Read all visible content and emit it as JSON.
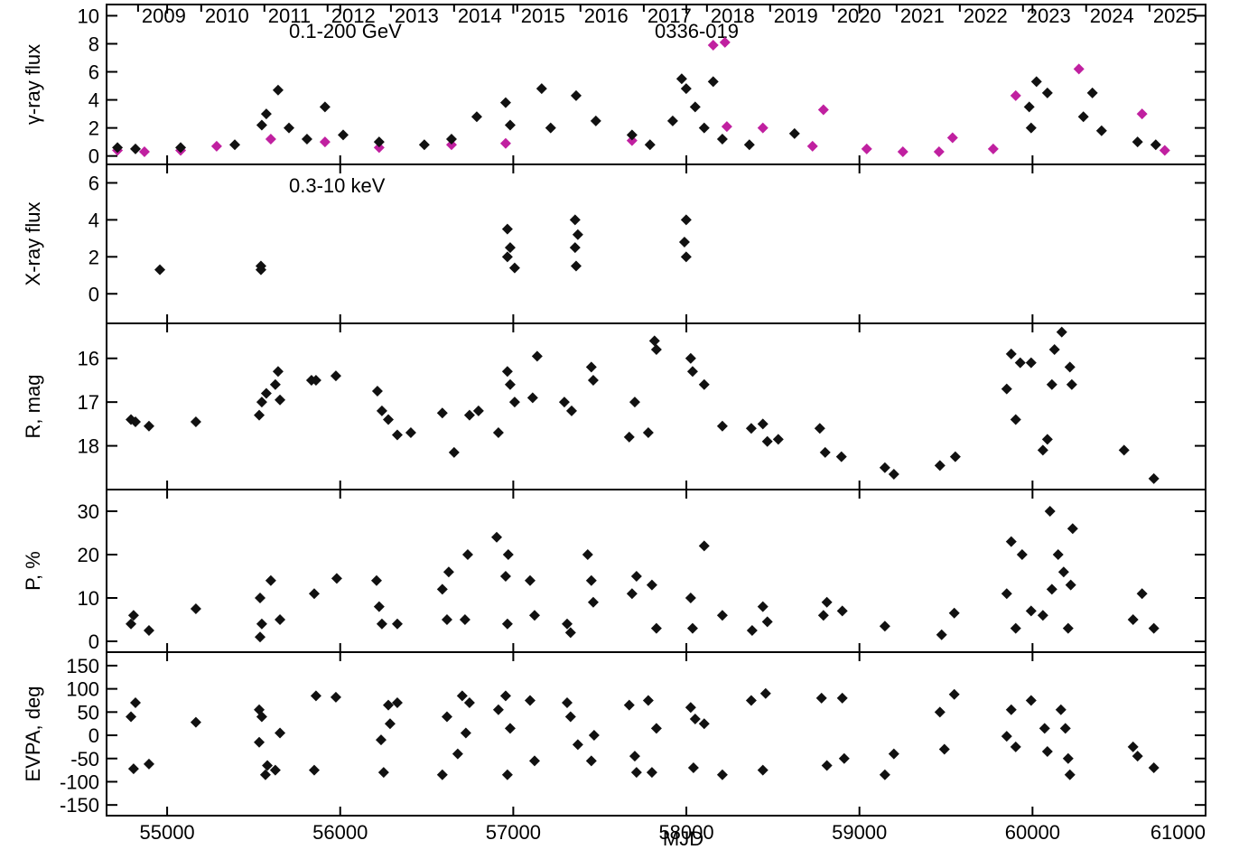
{
  "chart_data": [
    {
      "type": "scatter",
      "y_label": "γ-ray flux",
      "annotations": [
        "0.1-200 GeV",
        "0336-019"
      ],
      "xlim": [
        54650,
        61000
      ],
      "xticks": [
        55000,
        56000,
        57000,
        58000,
        59000,
        60000,
        61000
      ],
      "x2ticks": [
        {
          "value": 54832,
          "label": "2009"
        },
        {
          "value": 55197,
          "label": "2010"
        },
        {
          "value": 55562,
          "label": "2011"
        },
        {
          "value": 55927,
          "label": "2012"
        },
        {
          "value": 56293,
          "label": "2013"
        },
        {
          "value": 56658,
          "label": "2014"
        },
        {
          "value": 57023,
          "label": "2015"
        },
        {
          "value": 57388,
          "label": "2016"
        },
        {
          "value": 57754,
          "label": "2017"
        },
        {
          "value": 58119,
          "label": "2018"
        },
        {
          "value": 58484,
          "label": "2019"
        },
        {
          "value": 58849,
          "label": "2020"
        },
        {
          "value": 59215,
          "label": "2021"
        },
        {
          "value": 59580,
          "label": "2022"
        },
        {
          "value": 59945,
          "label": "2023"
        },
        {
          "value": 60310,
          "label": "2024"
        },
        {
          "value": 60676,
          "label": "2025"
        }
      ],
      "ylim": [
        -0.6,
        10.8
      ],
      "yticks": [
        0,
        2,
        4,
        6,
        8,
        10
      ],
      "series": [
        {
          "color": "#c020a0",
          "x": [
            54713,
            54869,
            55078,
            55286,
            55599,
            55912,
            56225,
            56643,
            56956,
            57686,
            58155,
            58223,
            58234,
            58442,
            58729,
            58792,
            59042,
            59251,
            59460,
            59538,
            59773,
            59903,
            60268,
            60633,
            60764
          ],
          "values": [
            0.4,
            0.3,
            0.4,
            0.7,
            1.2,
            1.0,
            0.6,
            0.8,
            0.9,
            1.1,
            7.9,
            8.1,
            2.1,
            2.0,
            0.7,
            3.3,
            0.5,
            0.3,
            0.3,
            1.3,
            0.5,
            4.3,
            6.2,
            3.0,
            0.4
          ]
        },
        {
          "color": "#111111",
          "x": [
            54713,
            54817,
            55078,
            55391,
            55547,
            55573,
            55641,
            55704,
            55808,
            55912,
            56017,
            56225,
            56486,
            56643,
            56789,
            56956,
            56982,
            57164,
            57216,
            57363,
            57477,
            57686,
            57790,
            57921,
            57973,
            57999,
            58051,
            58103,
            58155,
            58208,
            58364,
            58625,
            59981,
            59992,
            60023,
            60086,
            60294,
            60346,
            60399,
            60607,
            60712
          ],
          "values": [
            0.6,
            0.5,
            0.6,
            0.8,
            2.2,
            3.0,
            4.7,
            2.0,
            1.2,
            3.5,
            1.5,
            1.0,
            0.8,
            1.2,
            2.8,
            3.8,
            2.2,
            4.8,
            2.0,
            4.3,
            2.5,
            1.5,
            0.8,
            2.5,
            5.5,
            4.8,
            3.5,
            2.0,
            5.3,
            1.2,
            0.8,
            1.6,
            3.5,
            2.0,
            5.3,
            4.5,
            2.8,
            4.5,
            1.8,
            1.0,
            0.8
          ]
        }
      ]
    },
    {
      "type": "scatter",
      "y_label": "X-ray flux",
      "annotations": [
        "0.3-10 keV"
      ],
      "xlim": [
        54650,
        61000
      ],
      "xticks": [
        55000,
        56000,
        57000,
        58000,
        59000,
        60000,
        61000
      ],
      "ylim": [
        -1.6,
        7
      ],
      "yticks": [
        0,
        2,
        4,
        6
      ],
      "series": [
        {
          "color": "#111111",
          "x": [
            54958,
            55542,
            55542,
            56966,
            56966,
            56982,
            57008,
            57357,
            57357,
            57363,
            57373,
            57999,
            57989,
            57999
          ],
          "values": [
            1.3,
            1.5,
            1.3,
            2.0,
            3.5,
            2.5,
            1.4,
            4.0,
            2.5,
            1.5,
            3.2,
            4.0,
            2.8,
            2.0
          ]
        }
      ]
    },
    {
      "type": "scatter",
      "y_label": "R, mag",
      "xlim": [
        54650,
        61000
      ],
      "xticks": [
        55000,
        56000,
        57000,
        58000,
        59000,
        60000,
        61000
      ],
      "ylim": [
        19,
        15.2
      ],
      "yticks": [
        16,
        17,
        18
      ],
      "series": [
        {
          "color": "#111111",
          "x": [
            54791,
            54817,
            54895,
            55166,
            55532,
            55547,
            55573,
            55625,
            55652,
            55641,
            55834,
            55860,
            55975,
            56215,
            56241,
            56278,
            56330,
            56408,
            56590,
            56658,
            56747,
            56799,
            56914,
            56966,
            56982,
            57008,
            57112,
            57138,
            57295,
            57337,
            57451,
            57462,
            57670,
            57702,
            57780,
            57816,
            57827,
            58025,
            58036,
            58103,
            58208,
            58375,
            58442,
            58468,
            58531,
            58771,
            58802,
            58896,
            59147,
            59199,
            59465,
            59554,
            59851,
            59877,
            59903,
            59929,
            59992,
            60060,
            60086,
            60112,
            60127,
            60169,
            60216,
            60227,
            60529,
            60701
          ],
          "values": [
            17.4,
            17.45,
            17.55,
            17.45,
            17.3,
            17.0,
            16.8,
            16.6,
            16.95,
            16.3,
            16.5,
            16.5,
            16.4,
            16.75,
            17.2,
            17.4,
            17.75,
            17.7,
            17.25,
            18.15,
            17.3,
            17.2,
            17.7,
            16.3,
            16.6,
            17.0,
            16.9,
            15.95,
            17.0,
            17.2,
            16.2,
            16.5,
            17.8,
            17.0,
            17.7,
            15.6,
            15.8,
            16.0,
            16.3,
            16.6,
            17.55,
            17.6,
            17.5,
            17.9,
            17.85,
            17.6,
            18.15,
            18.25,
            18.5,
            18.65,
            18.45,
            18.25,
            16.7,
            15.9,
            17.4,
            16.1,
            16.1,
            18.1,
            17.85,
            16.6,
            15.8,
            15.4,
            16.2,
            16.6,
            18.1,
            18.75
          ]
        }
      ]
    },
    {
      "type": "scatter",
      "y_label": "P, %",
      "xlim": [
        54650,
        61000
      ],
      "xticks": [
        55000,
        56000,
        57000,
        58000,
        59000,
        60000,
        61000
      ],
      "ylim": [
        -2.5,
        35
      ],
      "yticks": [
        0,
        10,
        20,
        30
      ],
      "series": [
        {
          "color": "#111111",
          "x": [
            54791,
            54806,
            54895,
            55166,
            55537,
            55537,
            55547,
            55599,
            55652,
            55850,
            55980,
            56210,
            56225,
            56241,
            56330,
            56590,
            56617,
            56627,
            56721,
            56737,
            56904,
            56956,
            56971,
            56966,
            57097,
            57123,
            57311,
            57331,
            57430,
            57451,
            57462,
            57686,
            57712,
            57801,
            57827,
            58025,
            58036,
            58103,
            58208,
            58380,
            58442,
            58468,
            58792,
            58812,
            58901,
            59147,
            59475,
            59548,
            59851,
            59877,
            59903,
            59940,
            59992,
            60060,
            60101,
            60112,
            60148,
            60180,
            60206,
            60221,
            60232,
            60581,
            60633,
            60701
          ],
          "values": [
            4,
            6,
            2.5,
            7.5,
            10,
            1,
            4,
            14,
            5,
            11,
            14.5,
            14,
            8,
            4,
            4,
            12,
            5,
            16,
            5,
            20,
            24,
            15,
            20,
            4,
            14,
            6,
            4,
            2,
            20,
            14,
            9,
            11,
            15,
            13,
            3,
            10,
            3,
            22,
            6,
            2.5,
            8,
            4.5,
            6,
            9,
            7,
            3.5,
            1.5,
            6.5,
            11,
            23,
            3,
            20,
            7,
            6,
            30,
            12,
            20,
            16,
            3,
            13,
            26,
            5,
            11,
            3
          ]
        }
      ]
    },
    {
      "type": "scatter",
      "y_label": "EVPA, deg",
      "x_label": "MJD",
      "xlim": [
        54650,
        61000
      ],
      "xticks": [
        55000,
        56000,
        57000,
        58000,
        59000,
        60000,
        61000
      ],
      "ylim": [
        -173,
        179
      ],
      "yticks": [
        -150,
        -100,
        -50,
        0,
        50,
        100,
        150
      ],
      "series": [
        {
          "color": "#111111",
          "x": [
            54791,
            54817,
            54806,
            54895,
            55166,
            55532,
            55532,
            55547,
            55568,
            55579,
            55625,
            55652,
            55860,
            55975,
            55850,
            56236,
            56251,
            56278,
            56288,
            56330,
            56590,
            56617,
            56679,
            56705,
            56726,
            56747,
            56914,
            56956,
            56966,
            56982,
            57097,
            57123,
            57311,
            57331,
            57373,
            57451,
            57467,
            57670,
            57702,
            57712,
            57780,
            57801,
            57827,
            58025,
            58041,
            58051,
            58103,
            58208,
            58375,
            58442,
            58458,
            58781,
            58812,
            58901,
            58912,
            59147,
            59199,
            59465,
            59491,
            59548,
            59851,
            59877,
            59903,
            59992,
            60070,
            60086,
            60164,
            60190,
            60206,
            60216,
            60581,
            60607,
            60701
          ],
          "values": [
            40,
            70,
            -72,
            -62,
            28,
            -15,
            55,
            40,
            -85,
            -65,
            -75,
            5,
            85,
            82,
            -75,
            -10,
            -80,
            65,
            25,
            70,
            -85,
            40,
            -40,
            85,
            5,
            70,
            55,
            85,
            -85,
            15,
            75,
            -55,
            70,
            40,
            -20,
            -55,
            0,
            65,
            -45,
            -80,
            75,
            -80,
            15,
            60,
            -70,
            35,
            25,
            -85,
            75,
            -75,
            90,
            80,
            -65,
            80,
            -50,
            -85,
            -40,
            50,
            -30,
            88,
            -2,
            55,
            -25,
            75,
            15,
            -35,
            55,
            15,
            -50,
            -85,
            -25,
            -45,
            -70
          ]
        }
      ]
    }
  ]
}
